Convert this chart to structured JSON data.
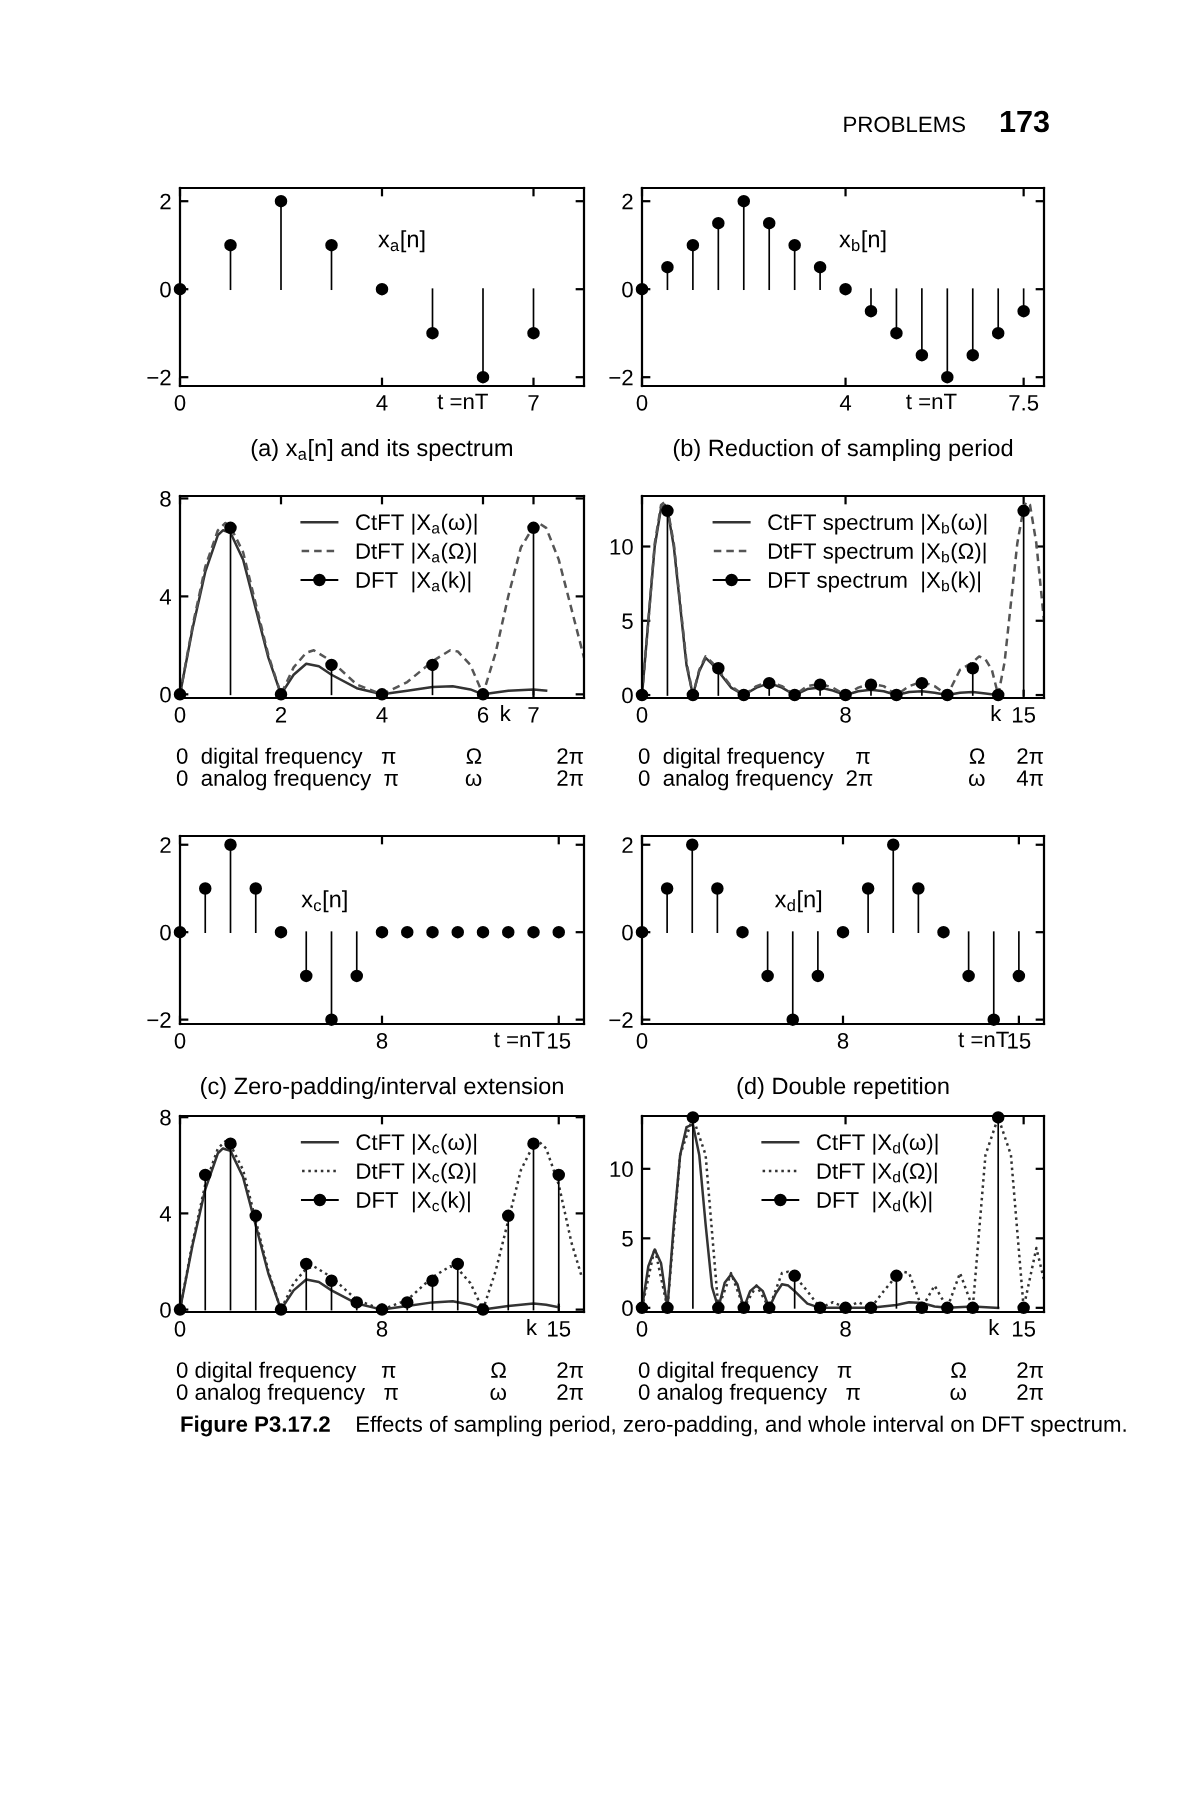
{
  "chart_data": [
    {
      "type": "lollipop",
      "title": "(a) x$_{a}$[n] and its spectrum",
      "xlabel": "t =nT",
      "marker": "circle",
      "xlim": [
        0,
        8
      ],
      "ylim": [
        -2.2,
        2.3
      ],
      "xticks": [
        0,
        4,
        7
      ],
      "yticks": [
        -2,
        0,
        2
      ],
      "series": [
        {
          "name": "x$_{a}$[n]",
          "color": "#000000",
          "x": [
            0,
            1,
            2,
            3,
            4,
            5,
            6,
            7
          ],
          "values": [
            0,
            1,
            2,
            1,
            0,
            -1,
            -2,
            -1
          ]
        }
      ],
      "annotations": [
        "PROBLEMS",
        "173"
      ]
    },
    {
      "type": "lollipop",
      "title": "(b) Reduction of sampling period",
      "xlabel": "t =nT",
      "marker": "circle",
      "xlim": [
        0,
        7.9
      ],
      "ylim": [
        -2.2,
        2.3
      ],
      "xticks": [
        0,
        4,
        7.5
      ],
      "yticks": [
        -2,
        0,
        2
      ],
      "series": [
        {
          "name": "x$_{b}$[n]",
          "color": "#000000",
          "x": [
            0,
            0.5,
            1,
            1.5,
            2,
            2.5,
            3,
            3.5,
            4,
            4.5,
            5,
            5.5,
            6,
            6.5,
            7,
            7.5
          ],
          "values": [
            0,
            0.5,
            1,
            1.5,
            2,
            1.5,
            1,
            0.5,
            0,
            -0.5,
            -1,
            -1.5,
            -2,
            -1.5,
            -1,
            -0.5
          ]
        }
      ]
    },
    {
      "type": "line",
      "xlabel": "k",
      "legend": "top",
      "xlim": [
        0,
        8
      ],
      "ylim": [
        -0.15,
        8.1
      ],
      "xticks": [
        0,
        2,
        4,
        6,
        7
      ],
      "yticks": [
        0,
        4,
        8
      ],
      "series": [
        {
          "name": "CtFT |X$_{a}$(ω)|",
          "color": "#333333",
          "line_style": "solid",
          "x": [
            0,
            0.25,
            0.5,
            0.75,
            0.85,
            1,
            1.25,
            1.5,
            1.75,
            2,
            2.25,
            2.5,
            2.75,
            3,
            3.5,
            4,
            4.5,
            5,
            5.4,
            5.75,
            6,
            6.5,
            7,
            7.25
          ],
          "values": [
            0,
            2.7,
            5.0,
            6.5,
            6.7,
            6.6,
            5.5,
            3.5,
            1.5,
            0,
            0.8,
            1.25,
            1.15,
            0.8,
            0.25,
            0,
            0.15,
            0.3,
            0.33,
            0.2,
            0,
            0.15,
            0.2,
            0.15
          ]
        },
        {
          "name": "DtFT |X$_{a}$(Ω)|",
          "color": "#555555",
          "line_style": "dashed",
          "x": [
            0,
            0.25,
            0.5,
            0.75,
            0.9,
            1,
            1.25,
            1.5,
            1.75,
            2,
            2.25,
            2.5,
            2.65,
            3,
            3.5,
            4,
            4.5,
            5,
            5.35,
            5.5,
            5.75,
            6,
            6.25,
            6.5,
            6.75,
            7,
            7.1,
            7.25,
            7.5,
            7.75,
            8
          ],
          "values": [
            0,
            2.8,
            5.2,
            6.7,
            7.0,
            6.85,
            5.8,
            3.7,
            1.6,
            0,
            1.1,
            1.7,
            1.8,
            1.35,
            0.4,
            0,
            0.5,
            1.35,
            1.8,
            1.75,
            1.2,
            0,
            1.7,
            4.0,
            6.0,
            6.85,
            7.0,
            6.8,
            5.5,
            3.5,
            1.5
          ]
        },
        {
          "name": "DFT  |X$_{a}$(k)|",
          "type": "lollipop",
          "marker": "circle",
          "color": "#000000",
          "x": [
            0,
            1,
            2,
            3,
            4,
            5,
            6,
            7
          ],
          "values": [
            0,
            6.8,
            0,
            1.2,
            0,
            1.2,
            0,
            6.8
          ]
        }
      ],
      "annotations": [
        "0  digital frequency   π",
        "Ω            2π",
        "0  analog frequency  π",
        "ω            2π"
      ]
    },
    {
      "type": "line",
      "xlabel": "k",
      "legend": "top",
      "xlim": [
        0,
        15.8
      ],
      "ylim": [
        -0.2,
        13.4
      ],
      "xticks": [
        0,
        8,
        15
      ],
      "yticks": [
        0,
        5,
        10
      ],
      "series": [
        {
          "name": "CtFT spectrum |X$_{b}$(ω)|",
          "color": "#333333",
          "line_style": "solid",
          "x": [
            0,
            0.25,
            0.5,
            0.75,
            0.9,
            1,
            1.25,
            1.5,
            1.75,
            2,
            2.25,
            2.5,
            2.75,
            3,
            3.5,
            4,
            4.5,
            5,
            5.5,
            6,
            6.5,
            7,
            7.5,
            8,
            8.5,
            9,
            9.5,
            10,
            10.5,
            11,
            11.5,
            12,
            12.5,
            13,
            13.5,
            14
          ],
          "values": [
            0,
            5,
            10,
            12.6,
            12.8,
            12.5,
            10,
            6,
            2,
            0,
            1.6,
            2.5,
            2.1,
            1.6,
            0.5,
            0,
            0.5,
            0.8,
            0.5,
            0,
            0.4,
            0.5,
            0.3,
            0,
            0.25,
            0.35,
            0.25,
            0,
            0.2,
            0.25,
            0.15,
            0,
            0.15,
            0.2,
            0.1,
            0
          ]
        },
        {
          "name": "DtFT spectrum |X$_{b}$(Ω)|",
          "color": "#555555",
          "line_style": "dashed",
          "x": [
            0,
            0.25,
            0.5,
            0.75,
            0.9,
            1,
            1.25,
            1.5,
            1.75,
            2,
            2.25,
            2.5,
            2.75,
            3,
            3.5,
            4,
            4.5,
            5,
            5.5,
            6,
            6.5,
            7,
            7.5,
            8,
            8.5,
            9,
            9.5,
            10,
            10.5,
            11,
            11.5,
            12,
            12.5,
            13,
            13.25,
            13.5,
            13.75,
            14,
            14.25,
            14.5,
            14.75,
            15,
            15.1,
            15.25,
            15.5,
            15.8
          ],
          "values": [
            0,
            5,
            10.2,
            12.8,
            13,
            12.6,
            10.2,
            6.2,
            2.2,
            0,
            1.7,
            2.6,
            2.2,
            1.7,
            0.6,
            0,
            0.6,
            0.9,
            0.6,
            0,
            0.6,
            0.75,
            0.5,
            0,
            0.5,
            0.75,
            0.6,
            0,
            0.6,
            0.9,
            0.6,
            0,
            1.7,
            2.2,
            2.6,
            2.4,
            1.7,
            0,
            2.2,
            6.2,
            10.2,
            12.6,
            13,
            12.8,
            10.2,
            5
          ]
        },
        {
          "name": "DFT spectrum  |X$_{b}$(k)|",
          "type": "lollipop",
          "marker": "circle",
          "color": "#000000",
          "x": [
            0,
            1,
            2,
            3,
            4,
            5,
            6,
            7,
            8,
            9,
            10,
            11,
            12,
            13,
            14,
            15
          ],
          "values": [
            0,
            12.4,
            0,
            1.8,
            0,
            0.8,
            0,
            0.7,
            0,
            0.7,
            0,
            0.8,
            0,
            1.8,
            0,
            12.4
          ]
        }
      ],
      "annotations": [
        "0  digital frequency     π",
        "Ω     2π",
        "0  analog frequency  2π",
        "ω     4π"
      ]
    },
    {
      "type": "lollipop",
      "title": "(c) Zero-padding/interval extension",
      "xlabel": "t =nT",
      "marker": "circle",
      "xlim": [
        0,
        16
      ],
      "ylim": [
        -2.1,
        2.2
      ],
      "xticks": [
        0,
        8,
        15
      ],
      "yticks": [
        -2,
        0,
        2
      ],
      "series": [
        {
          "name": "x$_{c}$[n]",
          "color": "#000000",
          "x": [
            0,
            1,
            2,
            3,
            4,
            5,
            6,
            7,
            8,
            9,
            10,
            11,
            12,
            13,
            14,
            15
          ],
          "values": [
            0,
            1,
            2,
            1,
            0,
            -1,
            -2,
            -1,
            0,
            0,
            0,
            0,
            0,
            0,
            0,
            0
          ]
        }
      ]
    },
    {
      "type": "lollipop",
      "title": "(d) Double repetition",
      "xlabel": "t =nT",
      "marker": "circle",
      "xlim": [
        0,
        16
      ],
      "ylim": [
        -2.1,
        2.2
      ],
      "xticks": [
        0,
        8,
        15
      ],
      "yticks": [
        -2,
        0,
        2
      ],
      "series": [
        {
          "name": "x$_{d}$[n]",
          "color": "#000000",
          "x": [
            0,
            1,
            2,
            3,
            4,
            5,
            6,
            7,
            8,
            9,
            10,
            11,
            12,
            13,
            14,
            15
          ],
          "values": [
            0,
            1,
            2,
            1,
            0,
            -1,
            -2,
            -1,
            0,
            1,
            2,
            1,
            0,
            -1,
            -2,
            -1
          ]
        }
      ]
    },
    {
      "type": "line",
      "xlabel": "k",
      "legend": "top",
      "xlim": [
        0,
        16
      ],
      "ylim": [
        -0.1,
        8.05
      ],
      "xticks": [
        0,
        8,
        15
      ],
      "yticks": [
        0,
        4,
        8
      ],
      "series": [
        {
          "name": "CtFT |X$_{c}$(ω)|",
          "color": "#333333",
          "line_style": "solid",
          "x": [
            0,
            0.5,
            1,
            1.5,
            1.7,
            2,
            2.5,
            3,
            3.5,
            4,
            4.5,
            5,
            5.5,
            6,
            7,
            8,
            9,
            10,
            10.8,
            11.5,
            12,
            13,
            14,
            14.5,
            15
          ],
          "values": [
            0,
            2.7,
            5.0,
            6.5,
            6.7,
            6.6,
            5.5,
            3.5,
            1.5,
            0,
            0.8,
            1.25,
            1.15,
            0.8,
            0.25,
            0,
            0.15,
            0.3,
            0.35,
            0.2,
            0,
            0.15,
            0.25,
            0.2,
            0.1
          ]
        },
        {
          "name": "DtFT |X$_{c}$(Ω)|",
          "color": "#333333",
          "line_style": "dotted",
          "x": [
            0,
            0.5,
            1,
            1.5,
            1.8,
            2,
            2.5,
            3,
            3.5,
            4,
            4.5,
            5,
            5.3,
            6,
            7,
            8,
            9,
            10,
            10.7,
            11,
            11.5,
            12,
            12.5,
            13,
            13.5,
            14,
            14.2,
            14.5,
            15,
            15.5,
            15.9
          ],
          "values": [
            0,
            2.8,
            5.2,
            6.7,
            7.0,
            6.85,
            5.8,
            3.7,
            1.6,
            0,
            1.1,
            1.7,
            1.8,
            1.35,
            0.4,
            0,
            0.4,
            1.35,
            1.8,
            1.7,
            1.1,
            0,
            1.6,
            3.7,
            5.8,
            6.85,
            7.0,
            6.7,
            5.2,
            2.8,
            1.4
          ]
        },
        {
          "name": "DFT  |X$_{c}$(k)|",
          "type": "lollipop",
          "marker": "circle",
          "color": "#000000",
          "x": [
            0,
            1,
            2,
            3,
            4,
            5,
            6,
            7,
            8,
            9,
            10,
            11,
            12,
            13,
            14,
            15
          ],
          "values": [
            0,
            5.6,
            6.9,
            3.9,
            0,
            1.9,
            1.2,
            0.3,
            0,
            0.3,
            1.2,
            1.9,
            0,
            3.9,
            6.9,
            5.6
          ]
        }
      ],
      "annotations": [
        "0 digital frequency    π",
        "Ω        2π",
        "0 analog frequency   π",
        "ω        2π"
      ]
    },
    {
      "type": "line",
      "xlabel": "k",
      "legend": "top",
      "xlim": [
        0,
        15.8
      ],
      "ylim": [
        -0.3,
        13.8
      ],
      "xticks": [
        0,
        8,
        15
      ],
      "yticks": [
        0,
        5,
        10
      ],
      "series": [
        {
          "name": "CtFT |X$_{d}$(ω)|",
          "color": "#333333",
          "line_style": "solid",
          "x": [
            0,
            0.25,
            0.5,
            0.75,
            1,
            1.25,
            1.5,
            1.75,
            2,
            2.25,
            2.5,
            2.75,
            3,
            3.25,
            3.5,
            3.75,
            4,
            4.25,
            4.5,
            4.75,
            5,
            5.25,
            5.5,
            5.75,
            6,
            6.5,
            7,
            8,
            9,
            10,
            10.5,
            11,
            11.5,
            12,
            13,
            14
          ],
          "values": [
            0,
            3,
            4.2,
            3.2,
            0,
            6,
            11,
            13,
            13.2,
            11,
            6,
            1.5,
            0,
            1.8,
            2.4,
            1.7,
            0,
            1.2,
            1.6,
            1.2,
            0,
            1.0,
            1.7,
            1.6,
            1.2,
            0.3,
            0,
            0,
            0,
            0.2,
            0.4,
            0.35,
            0.1,
            0,
            0.1,
            0
          ]
        },
        {
          "name": "DtFT |X$_{d}$(Ω)|",
          "color": "#333333",
          "line_style": "dotted",
          "x": [
            0,
            0.5,
            1,
            1.5,
            2,
            2.5,
            3,
            3.5,
            4,
            4.5,
            5,
            5.5,
            5.75,
            6,
            6.5,
            7,
            7.5,
            8,
            8.5,
            9,
            9.5,
            10,
            10.25,
            10.5,
            11,
            11.5,
            12,
            12.5,
            13,
            13.5,
            14,
            14.5,
            15,
            15.5,
            15.8
          ],
          "values": [
            0,
            4.3,
            0,
            11,
            13.7,
            11,
            0,
            2.5,
            0,
            1.6,
            0,
            2.5,
            2.6,
            2.3,
            1.2,
            0,
            0.4,
            0,
            0.4,
            0,
            1.2,
            2.3,
            2.6,
            2.5,
            0,
            1.6,
            0,
            2.5,
            0,
            11,
            13.7,
            11,
            0,
            4.3,
            2
          ]
        },
        {
          "name": "DFT  |X$_{d}$(k)|",
          "type": "lollipop",
          "marker": "circle",
          "color": "#000000",
          "x": [
            0,
            1,
            2,
            3,
            4,
            5,
            6,
            7,
            8,
            9,
            10,
            11,
            12,
            13,
            14,
            15
          ],
          "values": [
            0,
            0,
            13.7,
            0,
            0,
            0,
            2.3,
            0,
            0,
            0,
            2.3,
            0,
            0,
            0,
            13.7,
            0
          ]
        }
      ],
      "annotations": [
        "0 digital frequency   π",
        "Ω        2π",
        "0 analog frequency   π",
        "ω        2π",
        "Figure P3.17.2  Effects of sampling period, zero-padding, and whole interval on DFT spectrum."
      ]
    }
  ]
}
